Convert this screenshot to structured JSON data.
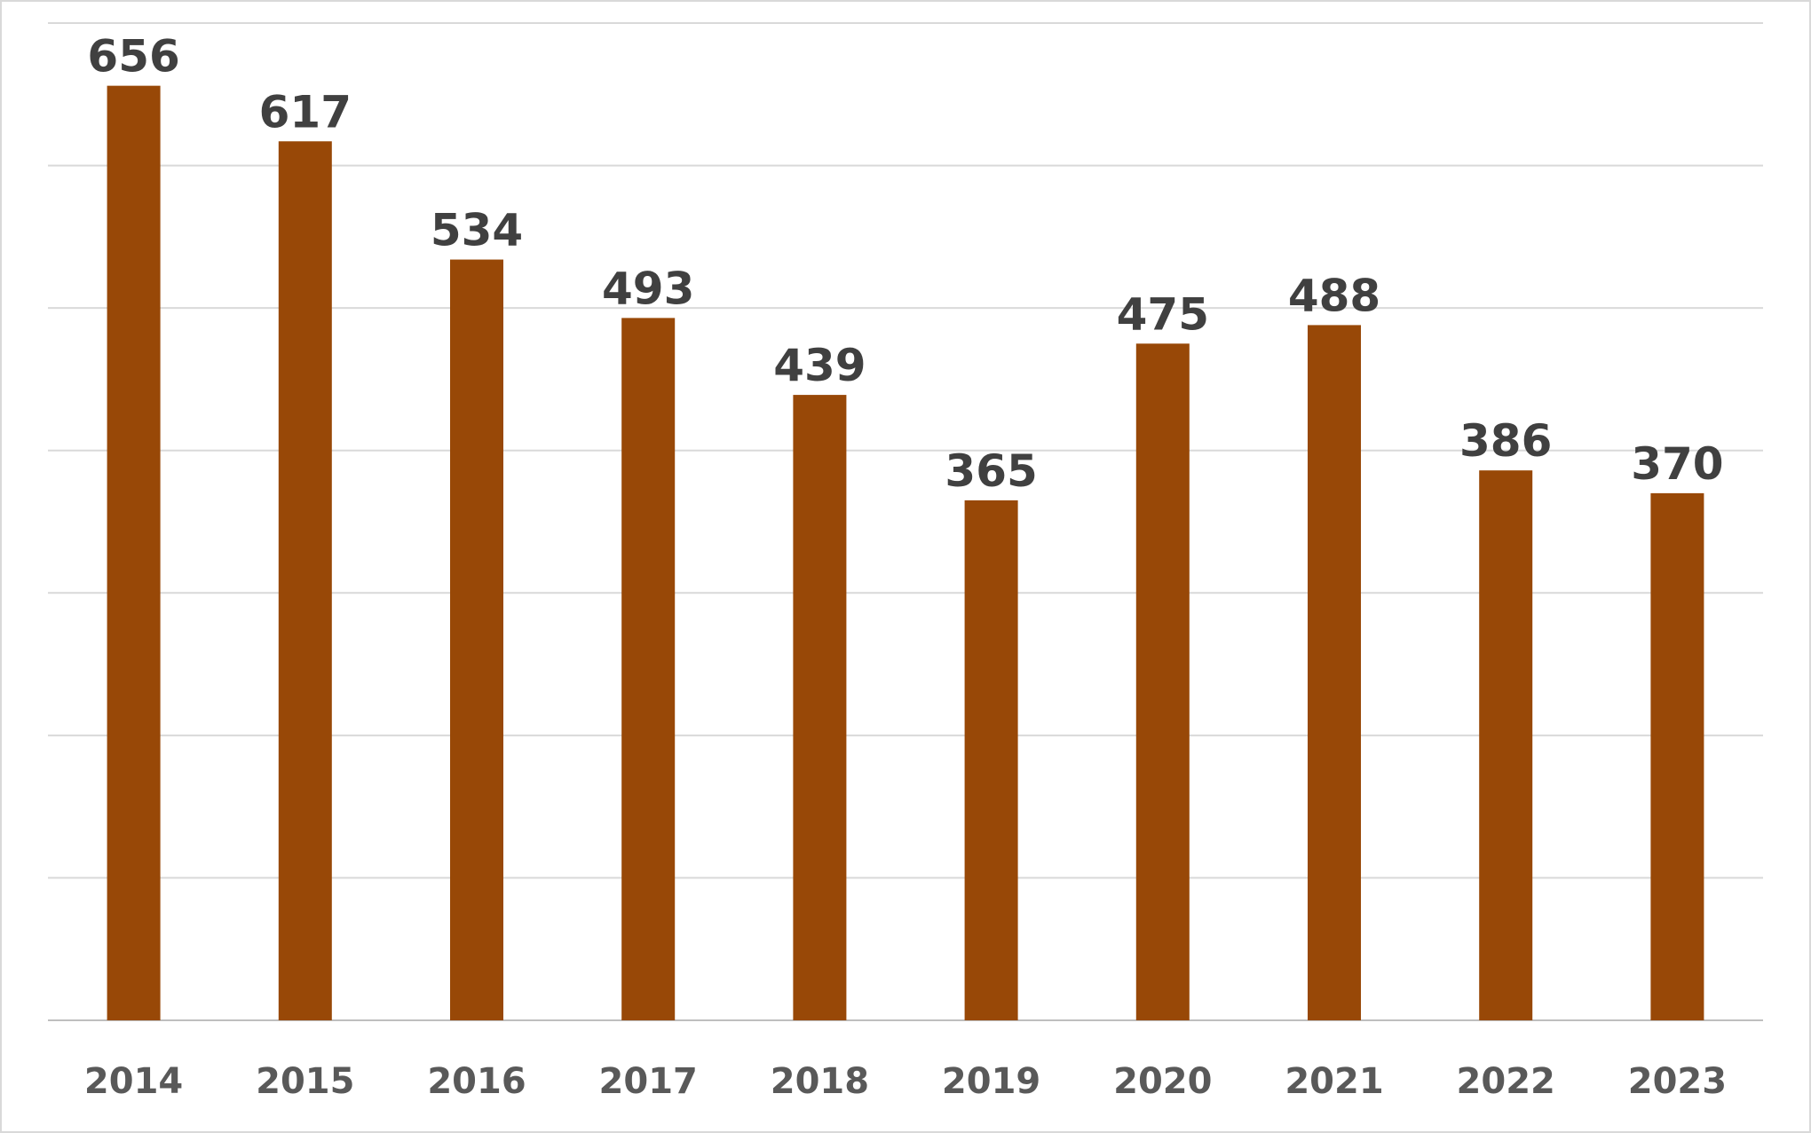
{
  "chart_data": {
    "type": "bar",
    "categories": [
      "2014",
      "2015",
      "2016",
      "2017",
      "2018",
      "2019",
      "2020",
      "2021",
      "2022",
      "2023"
    ],
    "values": [
      656,
      617,
      534,
      493,
      439,
      365,
      475,
      488,
      386,
      370
    ],
    "title": "",
    "xlabel": "",
    "ylabel": "",
    "ylim": [
      0,
      700
    ],
    "grid": true,
    "legend": "none",
    "data_labels": true,
    "bar_color": "#984807",
    "gridline_color": "#d9d9d9",
    "label_color": "#404040",
    "tick_color": "#595959"
  }
}
